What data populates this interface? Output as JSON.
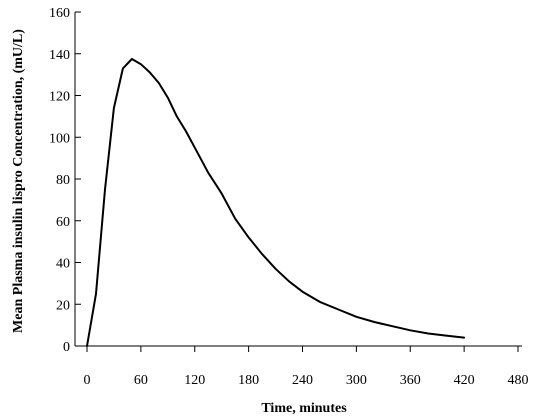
{
  "chart_data": {
    "type": "line",
    "title": "",
    "xlabel": "Time, minutes",
    "ylabel": "Mean Plasma insulin lispro Concentration, (mU/L)",
    "xlim": [
      0,
      480
    ],
    "ylim": [
      0,
      160
    ],
    "xticks": [
      0,
      60,
      120,
      180,
      240,
      300,
      360,
      420,
      480
    ],
    "yticks": [
      0,
      20,
      40,
      60,
      80,
      100,
      120,
      140,
      160
    ],
    "grid": false,
    "series": [
      {
        "color": "#000000",
        "x": [
          0,
          10,
          20,
          30,
          40,
          50,
          60,
          70,
          80,
          90,
          100,
          110,
          120,
          135,
          150,
          165,
          180,
          195,
          210,
          225,
          240,
          260,
          280,
          300,
          320,
          340,
          360,
          380,
          400,
          420
        ],
        "y": [
          0,
          25,
          75,
          114,
          133,
          137.5,
          135,
          131,
          126,
          119,
          110,
          103,
          95,
          83,
          73,
          61,
          52,
          44,
          37,
          31,
          26,
          21,
          17.5,
          14,
          11.5,
          9.5,
          7.5,
          6,
          5,
          4
        ]
      }
    ]
  }
}
